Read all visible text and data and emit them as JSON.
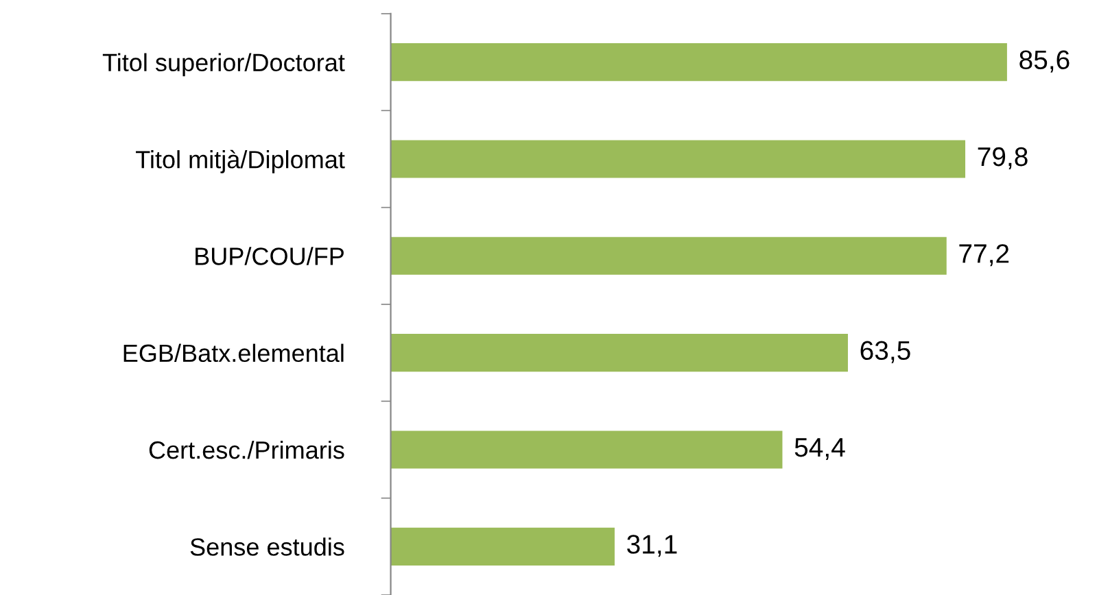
{
  "chart_data": {
    "type": "bar",
    "orientation": "horizontal",
    "categories": [
      "Titol superior/Doctorat",
      "Titol mitjà/Diplomat",
      "BUP/COU/FP",
      "EGB/Batx.elemental",
      "Cert.esc./Primaris",
      "Sense estudis"
    ],
    "values": [
      85.6,
      79.8,
      77.2,
      63.5,
      54.4,
      31.1
    ],
    "value_labels": [
      "85,6",
      "79,8",
      "77,2",
      "63,5",
      "54,4",
      "31,1"
    ],
    "color": "#9bbb59",
    "grid": false,
    "legend": false
  }
}
